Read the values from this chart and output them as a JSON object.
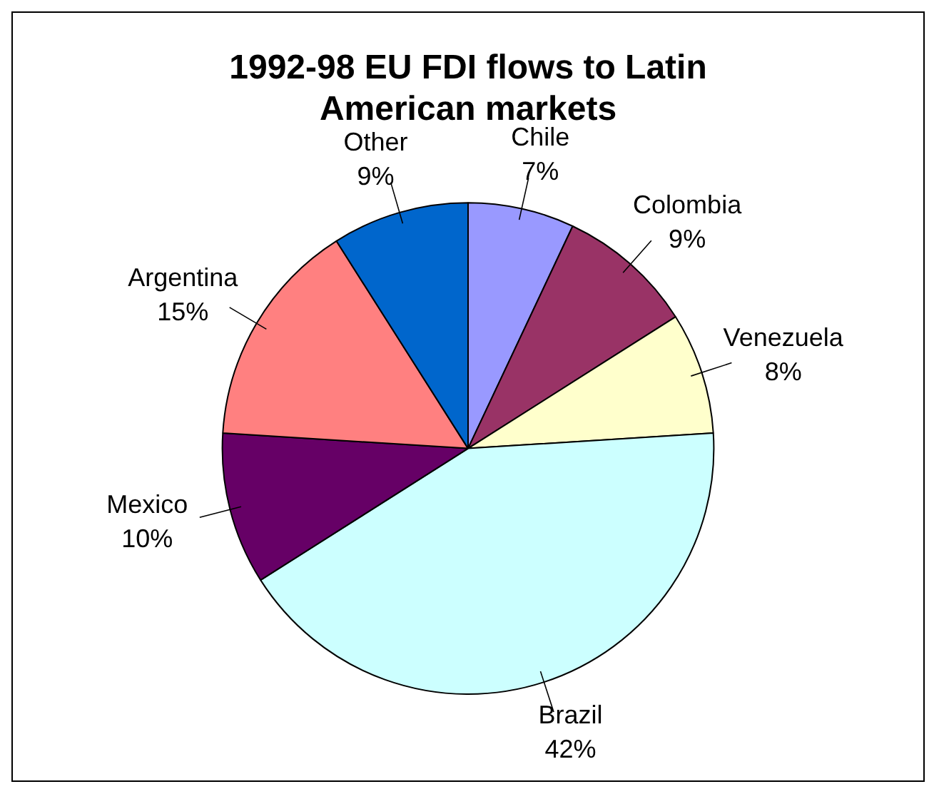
{
  "chart_data": {
    "type": "pie",
    "title": "1992-98 EU FDI flows to Latin American markets",
    "categories": [
      "Chile",
      "Colombia",
      "Venezuela",
      "Brazil",
      "Mexico",
      "Argentina",
      "Other"
    ],
    "values": [
      7,
      9,
      8,
      42,
      10,
      15,
      9
    ],
    "value_labels": [
      "7%",
      "9%",
      "8%",
      "42%",
      "10%",
      "15%",
      "9%"
    ],
    "colors": [
      "#9999ff",
      "#993366",
      "#ffffcc",
      "#ccffff",
      "#660066",
      "#ff8080",
      "#0066cc"
    ],
    "legend": false
  }
}
